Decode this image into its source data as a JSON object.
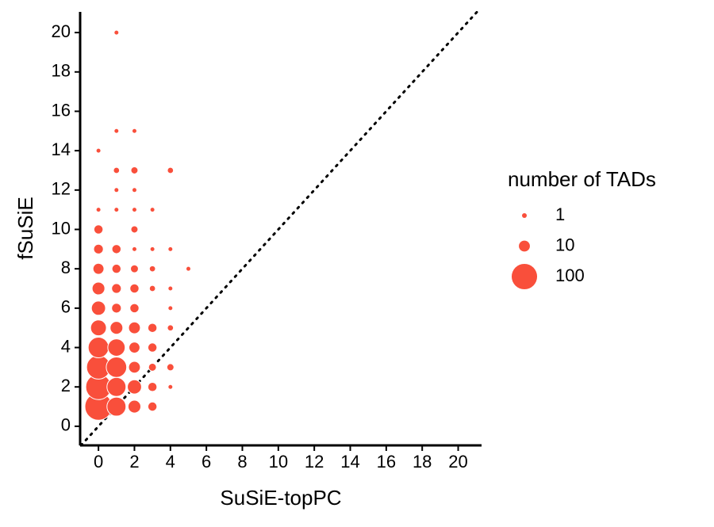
{
  "chart_data": {
    "type": "scatter",
    "x_label": "SuSiE-topPC",
    "y_label": "fSuSiE",
    "series": [
      {
        "color": "#f94f3b",
        "x": [
          0,
          0,
          0,
          0,
          0,
          0,
          0,
          0,
          0,
          0,
          0,
          0,
          1,
          1,
          1,
          1,
          1,
          1,
          1,
          1,
          1,
          1,
          1,
          1,
          1,
          1,
          2,
          2,
          2,
          2,
          2,
          2,
          2,
          2,
          2,
          2,
          2,
          2,
          2,
          2,
          3,
          3,
          3,
          3,
          3,
          3,
          3,
          3,
          3,
          4,
          4,
          4,
          4,
          4,
          4,
          4,
          5
        ],
        "values": [
          1,
          2,
          3,
          4,
          5,
          6,
          7,
          8,
          9,
          10,
          11,
          14,
          1,
          2,
          3,
          4,
          5,
          6,
          7,
          8,
          9,
          11,
          12,
          13,
          15,
          20,
          1,
          2,
          3,
          4,
          5,
          6,
          7,
          8,
          9,
          10,
          11,
          12,
          13,
          15,
          1,
          2,
          3,
          4,
          5,
          7,
          8,
          9,
          11,
          2,
          3,
          5,
          6,
          7,
          9,
          13,
          8
        ],
        "size": [
          120,
          100,
          83,
          56,
          27,
          20,
          15,
          10,
          7,
          6,
          1,
          1,
          45,
          45,
          55,
          35,
          15,
          7,
          7,
          6,
          6,
          1,
          1,
          2,
          1,
          1,
          15,
          20,
          12,
          10,
          12,
          6,
          6,
          4,
          1,
          3,
          1,
          1,
          3,
          1,
          6,
          6,
          4,
          6,
          6,
          2,
          2,
          1,
          1,
          1,
          3,
          2,
          1,
          1,
          1,
          2,
          1
        ]
      }
    ],
    "size_legend": {
      "title": "number of TADs",
      "values": [
        1,
        10,
        100
      ]
    },
    "reference_line": {
      "slope": 1,
      "intercept": 0
    },
    "xlim": [
      -1.02,
      21.3
    ],
    "ylim": [
      -0.97,
      21.05
    ],
    "xticks": [
      0,
      2,
      4,
      6,
      8,
      10,
      12,
      14,
      16,
      18,
      20
    ],
    "yticks": [
      0,
      2,
      4,
      6,
      8,
      10,
      12,
      14,
      16,
      18,
      20
    ]
  }
}
